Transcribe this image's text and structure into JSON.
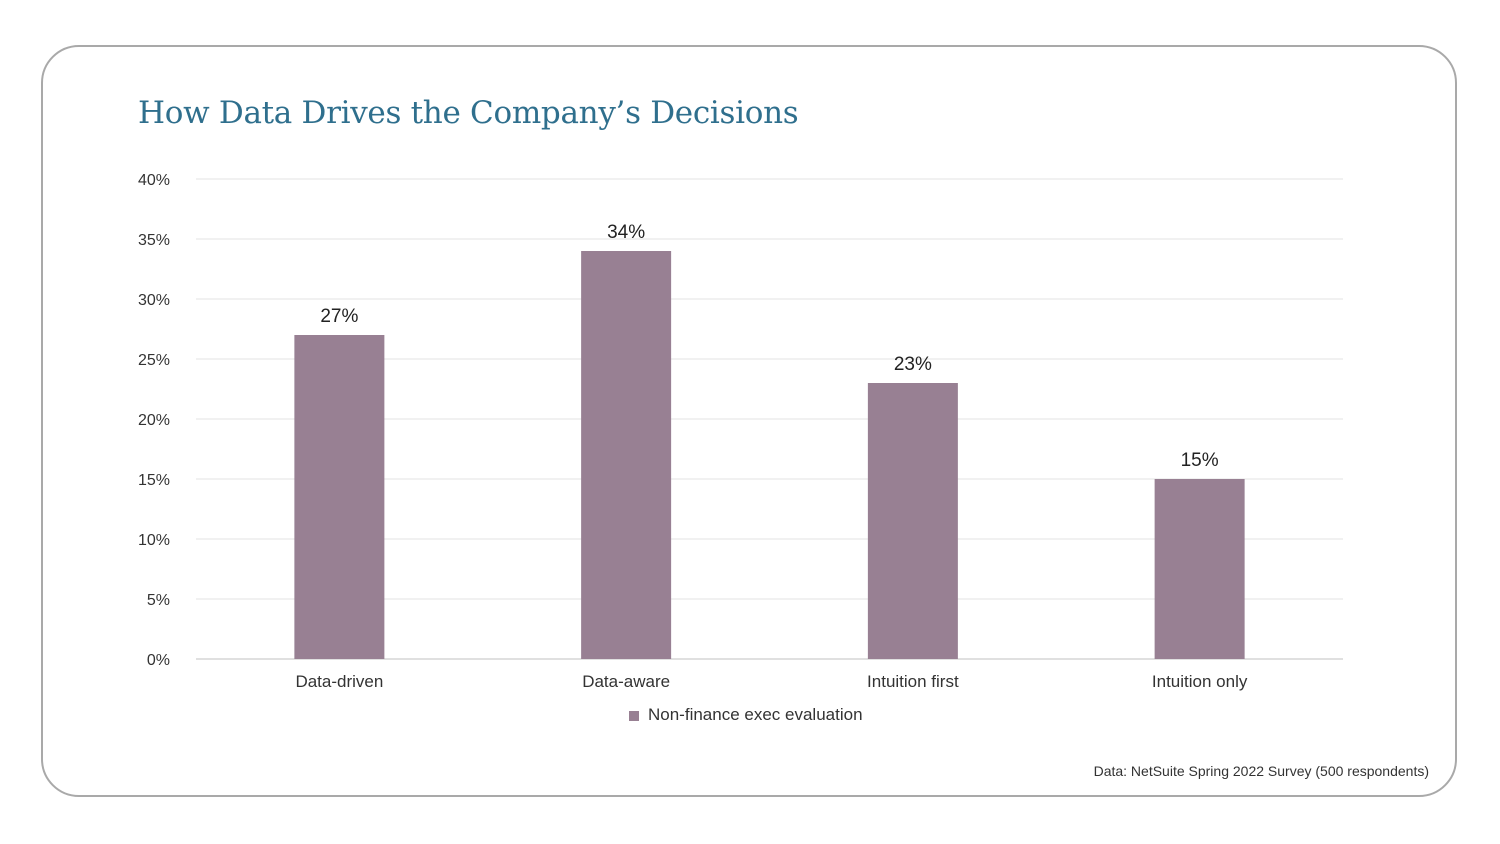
{
  "chart_data": {
    "type": "bar",
    "title": "How Data Drives the Company’s Decisions",
    "categories": [
      "Data-driven",
      "Data-aware",
      "Intuition first",
      "Intuition only"
    ],
    "series": [
      {
        "name": "Non-finance exec evaluation",
        "values": [
          27,
          34,
          23,
          15
        ],
        "labels": [
          "27%",
          "34%",
          "23%",
          "15%"
        ]
      }
    ],
    "yticks": [
      "0%",
      "5%",
      "10%",
      "15%",
      "20%",
      "25%",
      "30%",
      "35%",
      "40%"
    ],
    "ylim": [
      0,
      40
    ],
    "ystep": 5,
    "grid": true,
    "legend_position": "bottom-center",
    "xlabel": "",
    "ylabel": ""
  },
  "footer": {
    "source": "Data: NetSuite Spring 2022 Survey (500 respondents)"
  },
  "colors": {
    "bar": "#988093",
    "title": "#2f6f8d",
    "grid": "#e3e3e3",
    "text": "#333333"
  }
}
